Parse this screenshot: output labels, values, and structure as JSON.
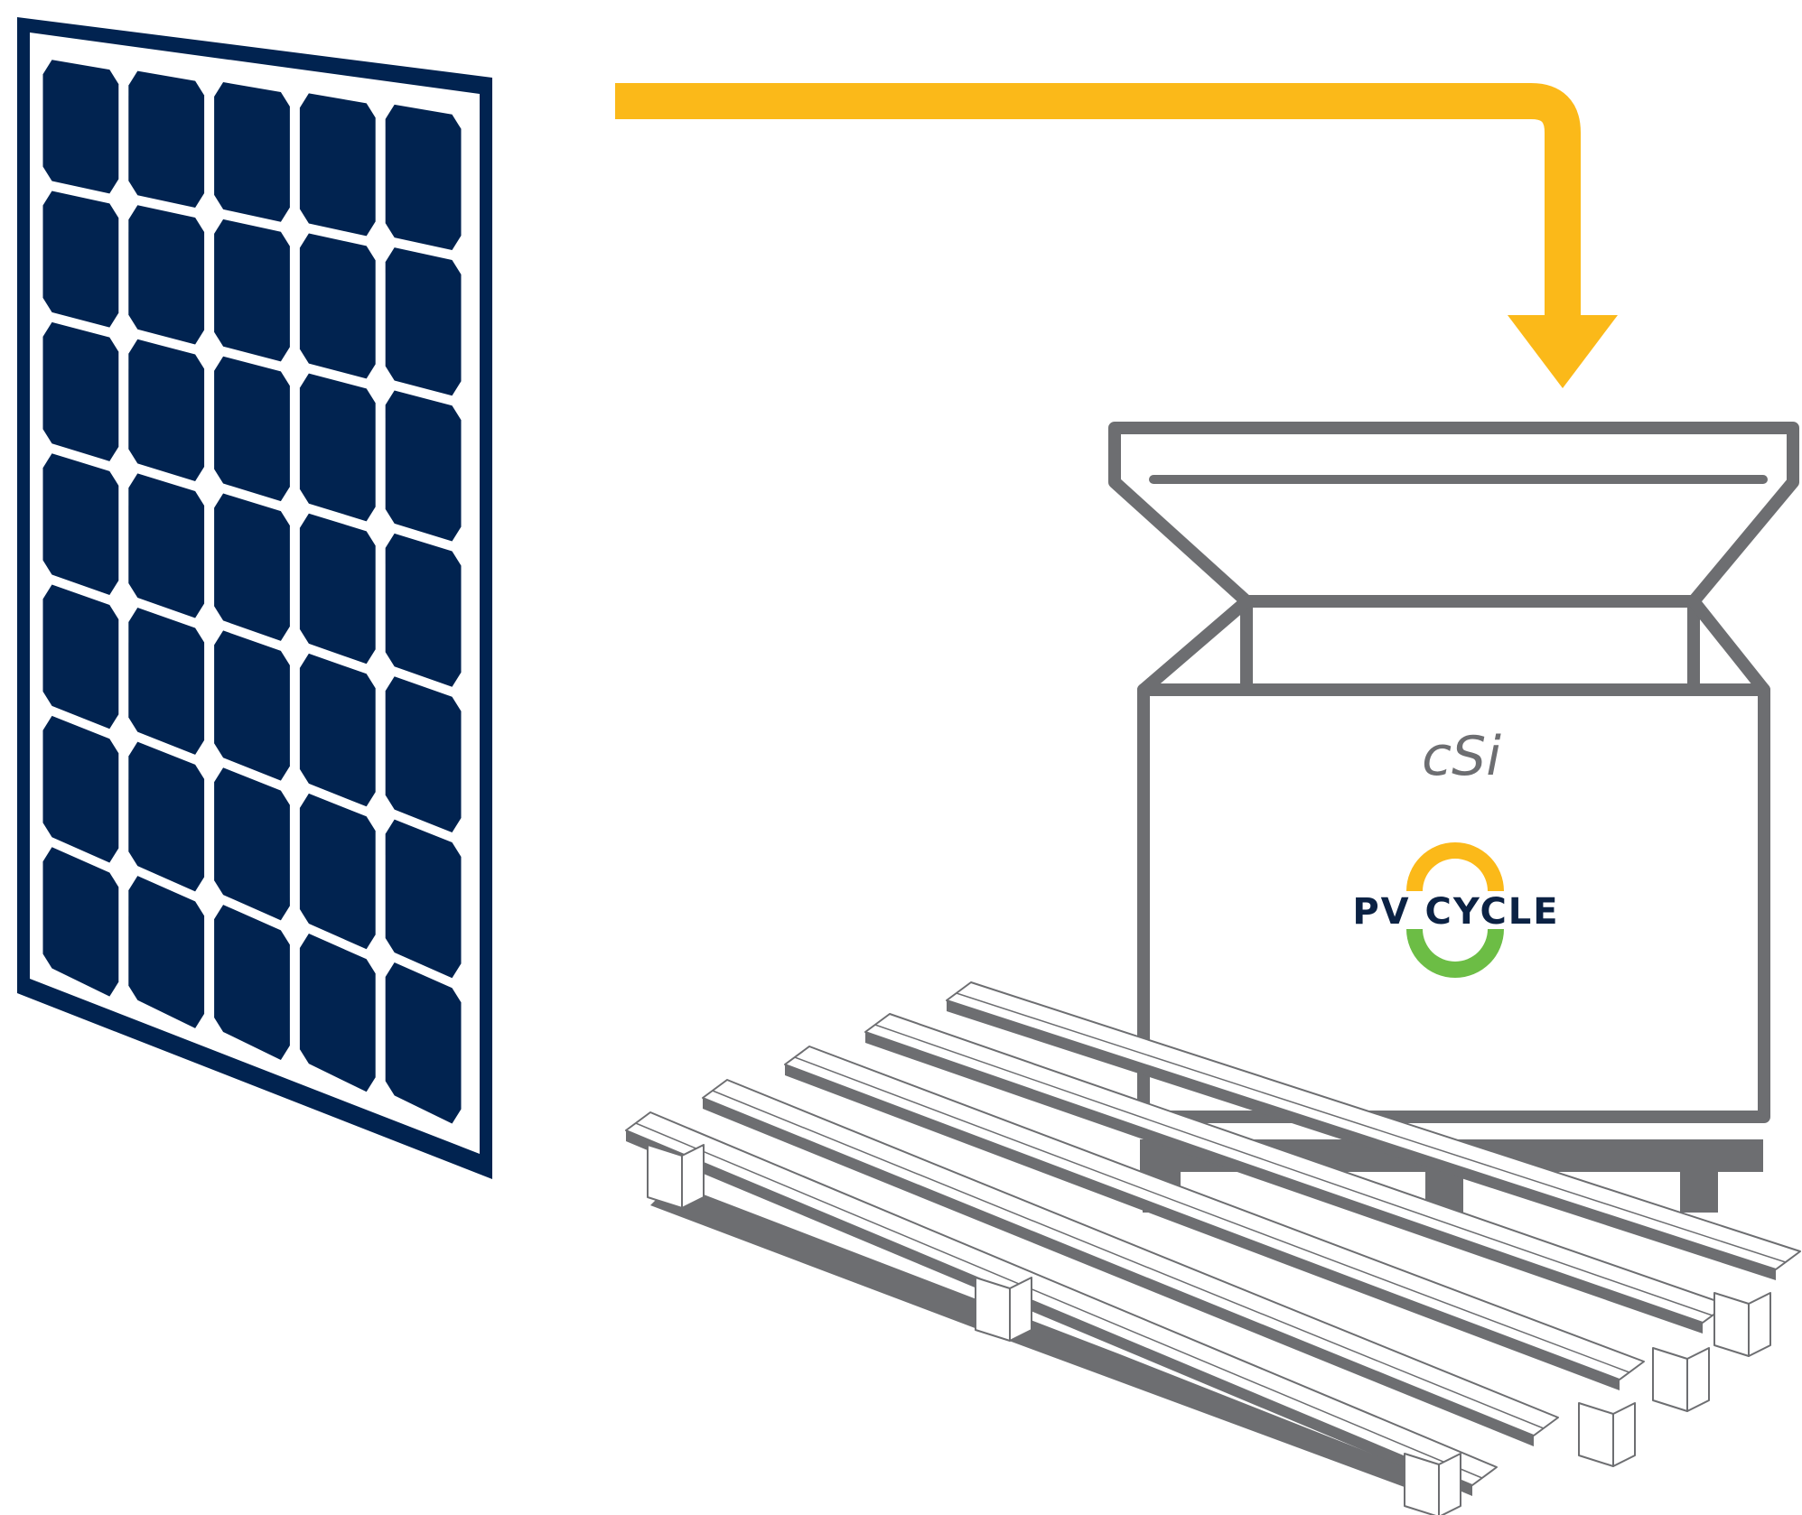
{
  "container": {
    "label": "cSi",
    "logo_text": "PV CYCLE"
  },
  "icons": {
    "panel": "solar-panel-icon",
    "arrow": "flow-arrow-icon",
    "bin": "collection-container-icon",
    "pallet": "pallet-icon",
    "logo": "pv-cycle-logo-icon"
  },
  "colors": {
    "panel_navy": "#012350",
    "arrow_yellow": "#fbb919",
    "container_gray": "#6d6e71",
    "logo_navy": "#0b2244",
    "logo_orange": "#fbb919",
    "logo_green": "#6cbd45"
  }
}
